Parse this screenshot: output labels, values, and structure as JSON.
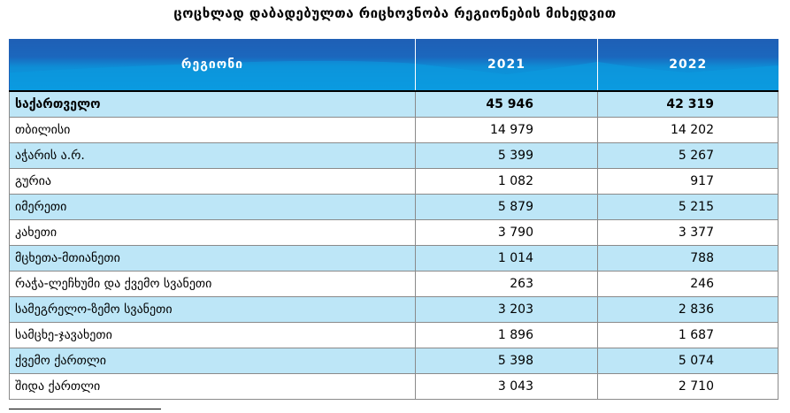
{
  "title": "ცოცხლად დაბადებულთა რიცხოვნობა რეგიონების მიხედვით",
  "table": {
    "headers": [
      "რეგიონი",
      "2021",
      "2022"
    ],
    "rows": [
      {
        "region": "საქართველო",
        "y2021": "45 946",
        "y2022": "42 319",
        "total": true
      },
      {
        "region": "თბილისი",
        "y2021": "14 979",
        "y2022": "14 202"
      },
      {
        "region": "აჭარის ა.რ.",
        "y2021": "5 399",
        "y2022": "5 267"
      },
      {
        "region": "გურია",
        "y2021": "1 082",
        "y2022": "917"
      },
      {
        "region": "იმერეთი",
        "y2021": "5 879",
        "y2022": "5 215"
      },
      {
        "region": "კახეთი",
        "y2021": "3 790",
        "y2022": "3 377"
      },
      {
        "region": "მცხეთა-მთიანეთი",
        "y2021": "1 014",
        "y2022": "788"
      },
      {
        "region": "რაჭა-ლეჩხუმი და ქვემო სვანეთი",
        "y2021": "263",
        "y2022": "246"
      },
      {
        "region": "სამეგრელო-ზემო სვანეთი",
        "y2021": "3 203",
        "y2022": "2 836"
      },
      {
        "region": "სამცხე-ჯავახეთი",
        "y2021": "1 896",
        "y2022": "1 687"
      },
      {
        "region": "ქვემო ქართლი",
        "y2021": "5 398",
        "y2022": "5 074"
      },
      {
        "region": "შიდა ქართლი",
        "y2021": "3 043",
        "y2022": "2 710"
      }
    ]
  },
  "colors": {
    "header_dark": "#1f5fb5",
    "header_light": "#0b9be0",
    "row_blue": "#bde6f7",
    "row_white": "#ffffff"
  }
}
